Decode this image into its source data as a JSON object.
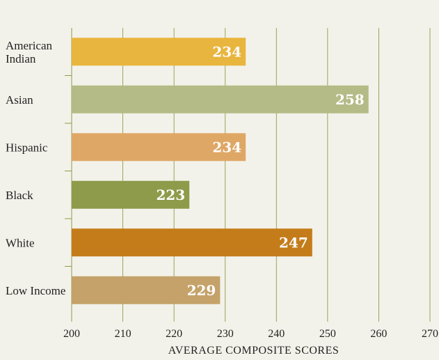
{
  "chart_data": {
    "type": "bar",
    "orientation": "horizontal",
    "title": "",
    "xlabel": "AVERAGE COMPOSITE SCORES",
    "ylabel": "",
    "xlim": [
      200,
      270
    ],
    "x_ticks": [
      "200",
      "210",
      "220",
      "230",
      "240",
      "250",
      "260",
      "270"
    ],
    "x_tick_values": [
      200,
      210,
      220,
      230,
      240,
      250,
      260,
      270
    ],
    "grid": true,
    "categories": [
      {
        "label_lines": [
          "American",
          "Indian"
        ],
        "value": 234,
        "value_label": "234",
        "color": "#e8b53e"
      },
      {
        "label_lines": [
          "Asian"
        ],
        "value": 258,
        "value_label": "258",
        "color": "#b4bb86"
      },
      {
        "label_lines": [
          "Hispanic"
        ],
        "value": 234,
        "value_label": "234",
        "color": "#dfa766"
      },
      {
        "label_lines": [
          "Black"
        ],
        "value": 223,
        "value_label": "223",
        "color": "#8e9b4a"
      },
      {
        "label_lines": [
          "White"
        ],
        "value": 247,
        "value_label": "247",
        "color": "#c47c1a"
      },
      {
        "label_lines": [
          "Low Income"
        ],
        "value": 229,
        "value_label": "229",
        "color": "#c4a269"
      }
    ],
    "colors": {
      "background": "#f3f2ea",
      "gridline": "#8e9b4a",
      "text": "#231f20",
      "value_text": "#ffffff"
    }
  }
}
